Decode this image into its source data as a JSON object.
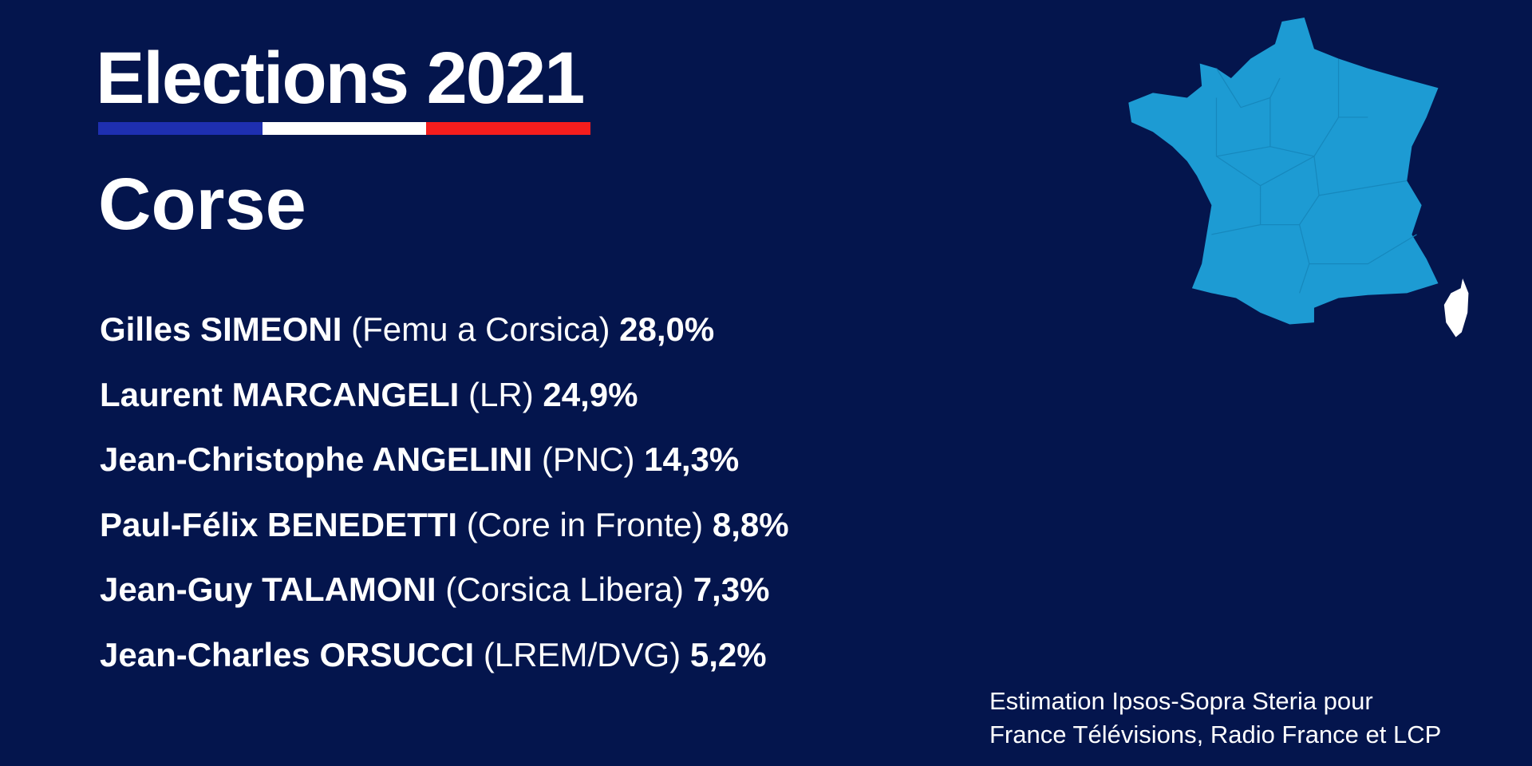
{
  "header": {
    "title": "Elections 2021",
    "region": "Corse"
  },
  "results": [
    {
      "name": "Gilles SIMEONI",
      "party": "(Femu a Corsica)",
      "share": "28,0%"
    },
    {
      "name": "Laurent MARCANGELI",
      "party": "(LR)",
      "share": "24,9%"
    },
    {
      "name": "Jean-Christophe ANGELINI",
      "party": "(PNC)",
      "share": "14,3%"
    },
    {
      "name": "Paul-Félix BENEDETTI",
      "party": "(Core in Fronte)",
      "share": "8,8%"
    },
    {
      "name": "Jean-Guy TALAMONI",
      "party": "(Corsica Libera)",
      "share": "7,3%"
    },
    {
      "name": "Jean-Charles ORSUCCI",
      "party": "(LREM/DVG)",
      "share": "5,2%"
    }
  ],
  "footer": [
    "Estimation Ipsos-Sopra Steria pour",
    "France Télévisions, Radio France et LCP"
  ]
}
